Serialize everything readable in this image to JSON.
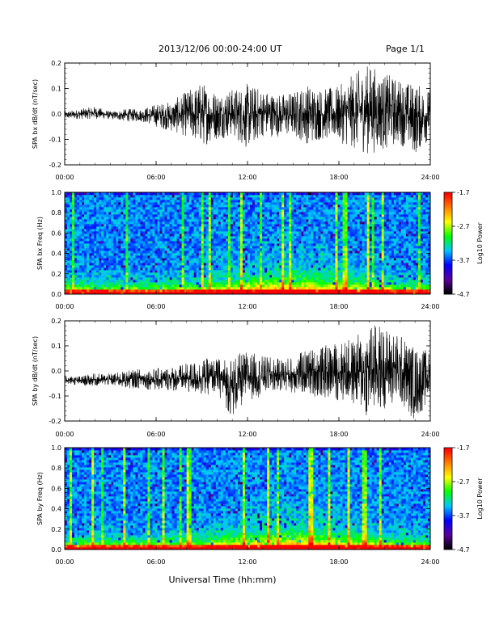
{
  "header": {
    "date_range": "2013/12/06  00:00-24:00 UT",
    "page": "Page 1/1"
  },
  "footer": {
    "xlabel": "Universal Time (hh:mm)"
  },
  "chart_data": [
    {
      "type": "line",
      "ylabel": "SPA bx dB/dt (nT/sec)",
      "xlim": [
        "00:00",
        "24:00"
      ],
      "ylim": [
        -0.2,
        0.2
      ],
      "x_tick_labels": [
        "00:00",
        "06:00",
        "12:00",
        "18:00",
        "24:00"
      ],
      "y_tick_labels": [
        "0.2",
        "0.1",
        "0.0",
        "-0.1",
        "-0.2"
      ],
      "y_ticks": [
        0.2,
        0.1,
        0.0,
        -0.1,
        -0.2
      ],
      "x": [
        "00:00",
        "01:00",
        "02:00",
        "03:00",
        "04:00",
        "05:00",
        "06:00",
        "07:00",
        "08:00",
        "09:00",
        "10:00",
        "11:00",
        "12:00",
        "13:00",
        "14:00",
        "15:00",
        "16:00",
        "17:00",
        "18:00",
        "19:00",
        "20:00",
        "21:00",
        "22:00",
        "23:00",
        "24:00"
      ],
      "series": [
        {
          "values_max": [
            0.01,
            0.02,
            0.03,
            0.01,
            0.02,
            0.02,
            0.04,
            0.05,
            0.09,
            0.13,
            0.09,
            0.1,
            0.12,
            0.1,
            0.08,
            0.09,
            0.12,
            0.1,
            0.11,
            0.16,
            0.2,
            0.16,
            0.14,
            0.12,
            0.1
          ],
          "values_min": [
            -0.02,
            -0.02,
            -0.02,
            -0.02,
            -0.03,
            -0.03,
            -0.05,
            -0.07,
            -0.09,
            -0.13,
            -0.1,
            -0.09,
            -0.14,
            -0.09,
            -0.09,
            -0.09,
            -0.12,
            -0.1,
            -0.11,
            -0.14,
            -0.16,
            -0.14,
            -0.12,
            -0.16,
            -0.1
          ]
        }
      ],
      "color": "#000000"
    },
    {
      "type": "heatmap",
      "ylabel": "SPA bx Freq (Hz)",
      "xlim": [
        "00:00",
        "24:00"
      ],
      "ylim": [
        0.0,
        1.0
      ],
      "x_tick_labels": [
        "00:00",
        "06:00",
        "12:00",
        "18:00",
        "24:00"
      ],
      "y_tick_labels": [
        "1.0",
        "0.8",
        "0.6",
        "0.4",
        "0.2",
        "0.0"
      ],
      "y_ticks": [
        1.0,
        0.8,
        0.6,
        0.4,
        0.2,
        0.0
      ],
      "colorbar": {
        "label": "Log10 Power",
        "tick_labels": [
          "-1.7",
          "-2.7",
          "-3.7",
          "-4.7"
        ],
        "range": [
          -4.7,
          -1.7
        ],
        "colors": [
          "#000000",
          "#5a00a0",
          "#0000ff",
          "#00c8ff",
          "#00ff00",
          "#ffff00",
          "#ff8000",
          "#ff0000"
        ]
      }
    },
    {
      "type": "line",
      "ylabel": "SPA by dB/dt (nT/sec)",
      "xlim": [
        "00:00",
        "24:00"
      ],
      "ylim": [
        -0.2,
        0.2
      ],
      "x_tick_labels": [
        "00:00",
        "06:00",
        "12:00",
        "18:00",
        "24:00"
      ],
      "y_tick_labels": [
        "0.2",
        "0.1",
        "0.0",
        "-0.1",
        "-0.2"
      ],
      "y_ticks": [
        0.2,
        0.1,
        0.0,
        -0.1,
        -0.2
      ],
      "x": [
        "00:00",
        "01:00",
        "02:00",
        "03:00",
        "04:00",
        "05:00",
        "06:00",
        "07:00",
        "08:00",
        "09:00",
        "10:00",
        "11:00",
        "12:00",
        "13:00",
        "14:00",
        "15:00",
        "16:00",
        "17:00",
        "18:00",
        "19:00",
        "20:00",
        "21:00",
        "22:00",
        "23:00",
        "24:00"
      ],
      "series": [
        {
          "values_max": [
            -0.02,
            -0.02,
            -0.01,
            -0.01,
            0.0,
            0.01,
            0.01,
            0.02,
            0.03,
            0.05,
            0.05,
            0.06,
            0.08,
            0.06,
            0.05,
            0.06,
            0.09,
            0.1,
            0.12,
            0.13,
            0.2,
            0.18,
            0.15,
            0.1,
            0.08
          ],
          "values_min": [
            -0.05,
            -0.06,
            -0.06,
            -0.06,
            -0.07,
            -0.07,
            -0.08,
            -0.08,
            -0.09,
            -0.1,
            -0.09,
            -0.19,
            -0.12,
            -0.1,
            -0.08,
            -0.09,
            -0.1,
            -0.11,
            -0.12,
            -0.14,
            -0.2,
            -0.15,
            -0.14,
            -0.2,
            -0.12
          ]
        }
      ],
      "color": "#000000"
    },
    {
      "type": "heatmap",
      "ylabel": "SPA by Freq (Hz)",
      "xlim": [
        "00:00",
        "24:00"
      ],
      "ylim": [
        0.0,
        1.0
      ],
      "x_tick_labels": [
        "00:00",
        "06:00",
        "12:00",
        "18:00",
        "24:00"
      ],
      "y_tick_labels": [
        "1.0",
        "0.8",
        "0.6",
        "0.4",
        "0.2",
        "0.0"
      ],
      "y_ticks": [
        1.0,
        0.8,
        0.6,
        0.4,
        0.2,
        0.0
      ],
      "colorbar": {
        "label": "Log10 Power",
        "tick_labels": [
          "-1.7",
          "-2.7",
          "-3.7",
          "-4.7"
        ],
        "range": [
          -4.7,
          -1.7
        ],
        "colors": [
          "#000000",
          "#5a00a0",
          "#0000ff",
          "#00c8ff",
          "#00ff00",
          "#ffff00",
          "#ff8000",
          "#ff0000"
        ]
      }
    }
  ]
}
